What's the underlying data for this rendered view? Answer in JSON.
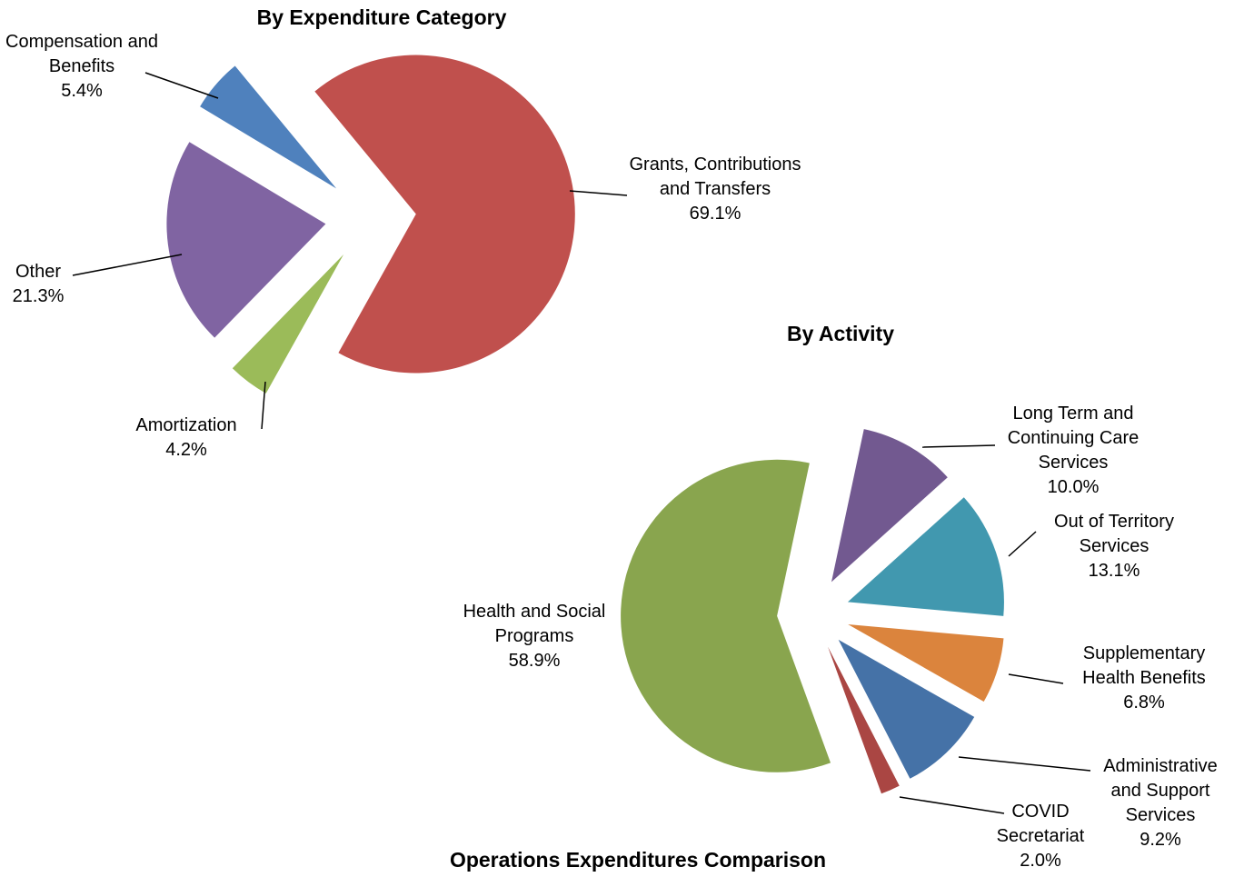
{
  "title": "Operations Expenditures Comparison",
  "chart_data": [
    {
      "type": "pie",
      "title": "By Expenditure Category",
      "categories": [
        "Compensation and Benefits",
        "Grants, Contributions and Transfers",
        "Amortization",
        "Other"
      ],
      "values": [
        5.4,
        69.1,
        4.2,
        21.3
      ],
      "value_labels": [
        "5.4%",
        "69.1%",
        "4.2%",
        "21.3%"
      ],
      "colors": [
        "#4f81bd",
        "#c0504d",
        "#9bbb59",
        "#8064a2"
      ]
    },
    {
      "type": "pie",
      "title": "By Activity",
      "categories": [
        "Long Term and Continuing Care Services",
        "Out of Territory Services",
        "Supplementary Health Benefits",
        "Administrative and Support Services",
        "COVID Secretariat",
        "Health and Social Programs"
      ],
      "values": [
        10.0,
        13.1,
        6.8,
        9.2,
        2.0,
        58.9
      ],
      "value_labels": [
        "10.0%",
        "13.1%",
        "6.8%",
        "9.2%",
        "2.0%",
        "58.9%"
      ],
      "colors": [
        "#725990",
        "#4198af",
        "#db843d",
        "#4572a7",
        "#aa4643",
        "#89a54e"
      ]
    }
  ]
}
